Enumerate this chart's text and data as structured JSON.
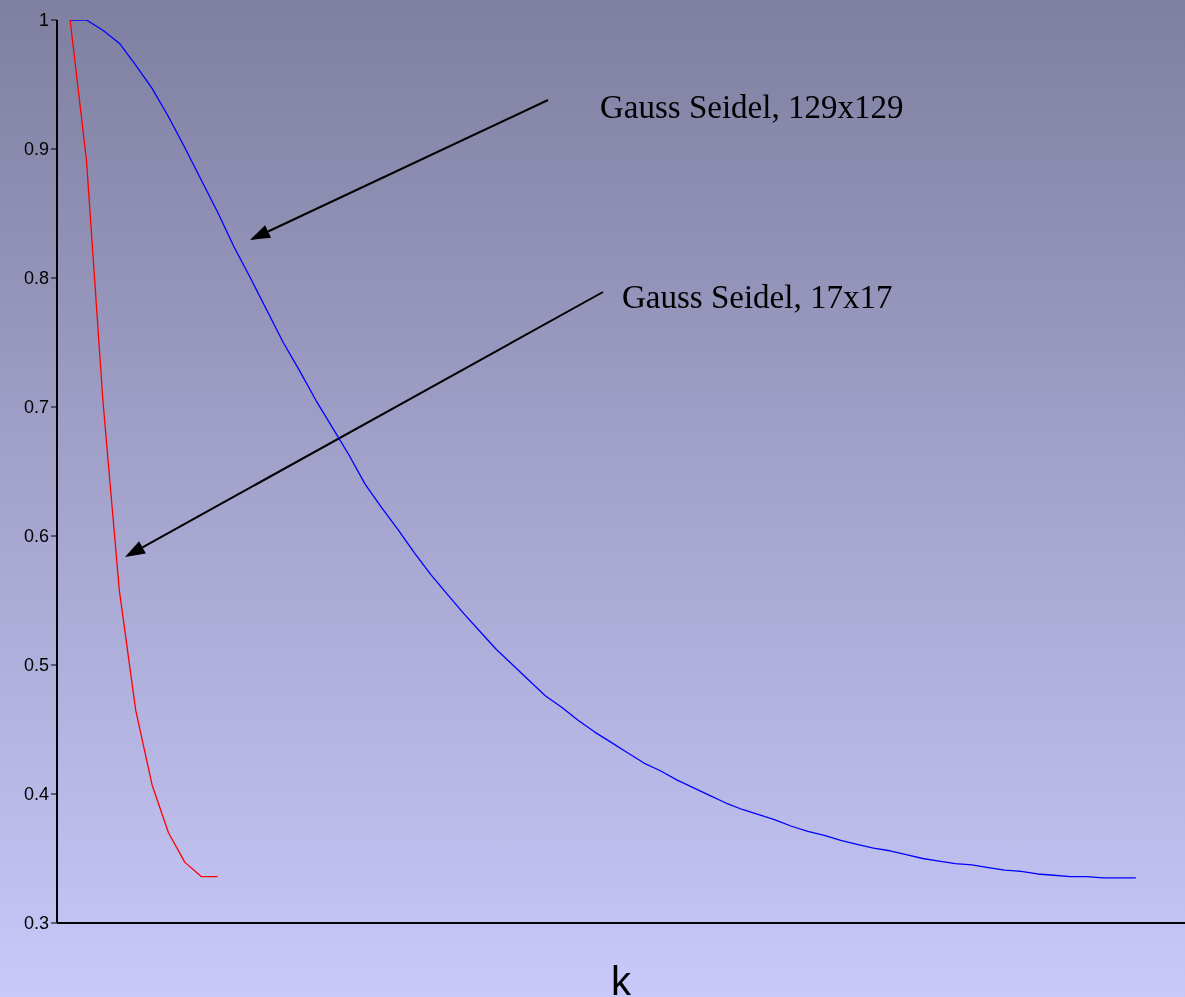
{
  "chart_data": {
    "type": "line",
    "xlabel": "k",
    "categories": [
      null,
      null,
      null,
      null,
      null,
      null,
      null,
      null,
      null,
      null,
      null,
      null,
      null,
      null,
      null,
      null,
      null,
      null,
      null,
      null,
      null,
      null,
      null,
      null,
      null,
      null,
      null,
      null,
      null,
      null,
      null,
      null,
      null,
      null,
      null,
      null,
      null,
      null,
      null,
      null,
      null,
      null,
      null,
      null,
      null,
      null,
      null,
      null,
      null,
      null,
      null,
      null,
      null,
      null,
      null,
      null,
      null,
      null,
      null,
      null,
      null,
      null,
      null,
      null,
      null,
      null
    ],
    "series": [
      {
        "color": "#0000ff",
        "values": [
          1.0,
          1.0,
          0.992,
          0.982,
          0.965,
          0.947,
          0.925,
          0.901,
          0.876,
          0.851,
          0.824,
          0.8,
          0.775,
          0.75,
          0.728,
          0.705,
          0.684,
          0.663,
          0.64,
          0.622,
          0.605,
          0.587,
          0.57,
          0.555,
          0.54,
          0.526,
          0.512,
          0.5,
          0.488,
          0.476,
          0.467,
          0.457,
          0.448,
          0.44,
          0.432,
          0.424,
          0.418,
          0.411,
          0.405,
          0.399,
          0.393,
          0.388,
          0.384,
          0.38,
          0.375,
          0.371,
          0.368,
          0.364,
          0.361,
          0.358,
          0.356,
          0.353,
          0.35,
          0.348,
          0.346,
          0.345,
          0.343,
          0.341,
          0.34,
          0.338,
          0.337,
          0.336,
          0.336,
          0.335,
          0.335,
          0.335
        ]
      },
      {
        "color": "#ff0000",
        "values": [
          1.0,
          0.891,
          0.705,
          0.558,
          0.465,
          0.407,
          0.37,
          0.347,
          0.336,
          0.336,
          null,
          null,
          null,
          null,
          null,
          null,
          null,
          null,
          null,
          null,
          null,
          null,
          null,
          null,
          null,
          null,
          null,
          null,
          null,
          null,
          null,
          null,
          null,
          null,
          null,
          null,
          null,
          null,
          null,
          null,
          null,
          null,
          null,
          null,
          null,
          null,
          null,
          null,
          null,
          null,
          null,
          null,
          null,
          null,
          null,
          null,
          null,
          null,
          null,
          null,
          null,
          null,
          null,
          null,
          null,
          null
        ]
      }
    ],
    "ylim": [
      0.3,
      1
    ],
    "yticks": [
      0.3,
      0.4,
      0.5,
      0.6,
      0.7,
      0.8,
      0.9,
      1
    ],
    "annotations": [
      "Gauss Seidel, 129x129",
      "Gauss Seidel, 17x17"
    ],
    "grid": false,
    "legend": false,
    "marker": "none",
    "line_style": "solid",
    "tick_labels": "y"
  }
}
